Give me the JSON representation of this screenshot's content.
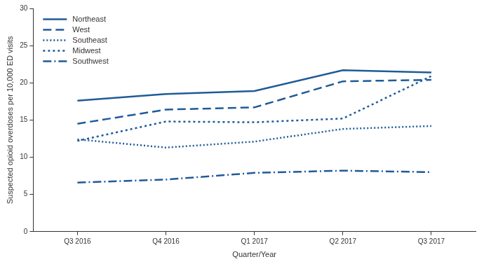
{
  "chart_data": {
    "type": "line",
    "x_label": "Quarter/Year",
    "y_label": "Suspected opioid overdoses per 10,000 ED visits",
    "categories": [
      "Q3 2016",
      "Q4 2016",
      "Q1 2017",
      "Q2 2017",
      "Q3 2017"
    ],
    "series": [
      {
        "name": "Northeast",
        "color": "#1f5b99",
        "line_style": "solid",
        "values": [
          17.6,
          18.5,
          18.9,
          21.7,
          21.4
        ]
      },
      {
        "name": "West",
        "color": "#1f5b99",
        "line_style": "dashed",
        "values": [
          14.5,
          16.4,
          16.7,
          20.2,
          20.4
        ]
      },
      {
        "name": "Southeast",
        "color": "#1f5b99",
        "line_style": "dotted",
        "values": [
          12.4,
          11.3,
          12.1,
          13.8,
          14.2
        ]
      },
      {
        "name": "Midwest",
        "color": "#1f5b99",
        "line_style": "short_dashed",
        "values": [
          12.2,
          14.8,
          14.7,
          15.2,
          20.9
        ]
      },
      {
        "name": "Southwest",
        "color": "#1f5b99",
        "line_style": "dash_dot",
        "values": [
          6.6,
          7.0,
          7.9,
          8.2,
          8.0
        ]
      }
    ],
    "ylim": [
      0,
      30
    ],
    "yticks": [
      0,
      5,
      10,
      15,
      20,
      25,
      30
    ],
    "grid": false,
    "legend": "upper left"
  }
}
